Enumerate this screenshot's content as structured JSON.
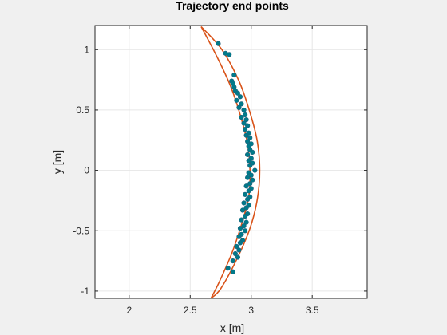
{
  "chart_data": {
    "type": "scatter",
    "title": "Trajectory end points",
    "xlabel": "x [m]",
    "ylabel": "y [m]",
    "xlim": [
      1.72,
      3.95
    ],
    "ylim": [
      -1.06,
      1.2
    ],
    "xticks": [
      2,
      2.5,
      3,
      3.5
    ],
    "xtick_labels": [
      "2",
      "2.5",
      "3",
      "3.5"
    ],
    "yticks": [
      1,
      0.5,
      0,
      -0.5,
      -1
    ],
    "ytick_labels": [
      "1",
      "0.5",
      "0",
      "-0.5",
      "-1"
    ],
    "grid": true,
    "legend": "none",
    "colors": {
      "background": "#f0f0f0",
      "axes_bg": "#ffffff",
      "grid": "#e6e6e6",
      "axis": "#262626",
      "boundary": "#d95319",
      "points": "#007a8a",
      "points_edge": "#1f5f7a"
    },
    "boundary": {
      "outer": [
        [
          2.59,
          1.19
        ],
        [
          2.76,
          1.0
        ],
        [
          2.9,
          0.74
        ],
        [
          2.99,
          0.48
        ],
        [
          3.05,
          0.24
        ],
        [
          3.07,
          0.0
        ],
        [
          3.05,
          -0.24
        ],
        [
          2.99,
          -0.48
        ],
        [
          2.88,
          -0.74
        ],
        [
          2.75,
          -0.98
        ],
        [
          2.67,
          -1.06
        ]
      ],
      "inner": [
        [
          2.67,
          -1.06
        ],
        [
          2.74,
          -0.92
        ],
        [
          2.84,
          -0.69
        ],
        [
          2.92,
          -0.45
        ],
        [
          2.98,
          -0.22
        ],
        [
          2.99,
          0.0
        ],
        [
          2.97,
          0.22
        ],
        [
          2.91,
          0.46
        ],
        [
          2.83,
          0.7
        ],
        [
          2.72,
          0.94
        ],
        [
          2.59,
          1.19
        ]
      ]
    },
    "points": [
      [
        2.73,
        1.05
      ],
      [
        2.79,
        0.97
      ],
      [
        2.82,
        0.96
      ],
      [
        2.86,
        0.79
      ],
      [
        2.84,
        0.74
      ],
      [
        2.85,
        0.72
      ],
      [
        2.86,
        0.69
      ],
      [
        2.87,
        0.66
      ],
      [
        2.89,
        0.64
      ],
      [
        2.91,
        0.61
      ],
      [
        2.88,
        0.58
      ],
      [
        2.92,
        0.55
      ],
      [
        2.9,
        0.52
      ],
      [
        2.94,
        0.5
      ],
      [
        2.95,
        0.46
      ],
      [
        2.92,
        0.44
      ],
      [
        2.96,
        0.42
      ],
      [
        2.94,
        0.39
      ],
      [
        2.97,
        0.37
      ],
      [
        2.95,
        0.34
      ],
      [
        2.98,
        0.31
      ],
      [
        2.96,
        0.29
      ],
      [
        2.99,
        0.27
      ],
      [
        2.97,
        0.24
      ],
      [
        3.0,
        0.22
      ],
      [
        2.98,
        0.2
      ],
      [
        2.99,
        0.17
      ],
      [
        3.01,
        0.15
      ],
      [
        2.97,
        0.13
      ],
      [
        3.0,
        0.1
      ],
      [
        2.98,
        0.08
      ],
      [
        3.01,
        0.06
      ],
      [
        2.99,
        0.04
      ],
      [
        3.03,
        0.0
      ],
      [
        2.98,
        -0.02
      ],
      [
        3.0,
        -0.04
      ],
      [
        2.97,
        -0.06
      ],
      [
        3.01,
        -0.08
      ],
      [
        2.99,
        -0.11
      ],
      [
        2.96,
        -0.13
      ],
      [
        3.0,
        -0.15
      ],
      [
        2.98,
        -0.17
      ],
      [
        2.95,
        -0.2
      ],
      [
        2.99,
        -0.22
      ],
      [
        2.97,
        -0.24
      ],
      [
        2.94,
        -0.27
      ],
      [
        2.98,
        -0.29
      ],
      [
        2.96,
        -0.31
      ],
      [
        2.93,
        -0.33
      ],
      [
        2.97,
        -0.36
      ],
      [
        2.95,
        -0.38
      ],
      [
        2.92,
        -0.41
      ],
      [
        2.96,
        -0.43
      ],
      [
        2.94,
        -0.46
      ],
      [
        2.91,
        -0.48
      ],
      [
        2.95,
        -0.5
      ],
      [
        2.92,
        -0.53
      ],
      [
        2.9,
        -0.55
      ],
      [
        2.93,
        -0.58
      ],
      [
        2.91,
        -0.6
      ],
      [
        2.88,
        -0.63
      ],
      [
        2.9,
        -0.66
      ],
      [
        2.87,
        -0.69
      ],
      [
        2.89,
        -0.72
      ],
      [
        2.85,
        -0.75
      ],
      [
        2.81,
        -0.81
      ],
      [
        2.85,
        -0.84
      ]
    ]
  }
}
